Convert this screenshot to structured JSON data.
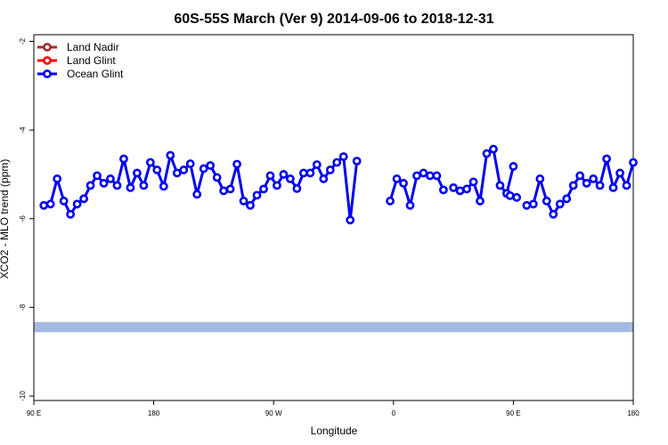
{
  "chart_data": {
    "type": "line",
    "title": "60S-55S March (Ver 9)   2014-09-06 to 2018-12-31",
    "xlabel": "Longitude",
    "ylabel": "XCO2 - MLO trend (ppm)",
    "xlim": [
      -270,
      -90
    ],
    "ylim": [
      -10.1,
      -1.85
    ],
    "x_ticks": [
      {
        "value": -270,
        "label": "90 E"
      },
      {
        "value": -234,
        "label": "180"
      },
      {
        "value": -198,
        "label": "90 W"
      },
      {
        "value": -162,
        "label": "0"
      },
      {
        "value": -126,
        "label": "90 E"
      },
      {
        "value": -90,
        "label": "180"
      }
    ],
    "y_ticks": [
      {
        "value": -2,
        "label": "-2"
      },
      {
        "value": -4,
        "label": "-4"
      },
      {
        "value": -6,
        "label": "-6"
      },
      {
        "value": -8,
        "label": "-8"
      },
      {
        "value": -10,
        "label": "-10"
      }
    ],
    "legend": {
      "position": "top-left",
      "entries": [
        {
          "name": "Land Nadir",
          "color": "#a52a2a"
        },
        {
          "name": "Land Glint",
          "color": "#ff0000"
        },
        {
          "name": "Ocean Glint",
          "color": "#0000ee"
        }
      ]
    },
    "series": [
      {
        "name": "Land Nadir",
        "color": "#a52a2a",
        "segments": []
      },
      {
        "name": "Land Glint",
        "color": "#ff0000",
        "segments": []
      },
      {
        "name": "Ocean Glint",
        "color": "#0000ee",
        "segments": [
          {
            "x": [
              -267,
              -265,
              -263,
              -261,
              -259,
              -257,
              -255,
              -253,
              -251,
              -249,
              -247,
              -245,
              -243,
              -241,
              -239,
              -237,
              -235,
              -233,
              -231,
              -229,
              -227,
              -225,
              -223,
              -221,
              -219,
              -217,
              -215,
              -213,
              -211,
              -209,
              -207,
              -205,
              -203,
              -201,
              -199,
              -197,
              -195,
              -193,
              -191,
              -189,
              -187,
              -185,
              -183,
              -181,
              -179,
              -177,
              -175,
              -173
            ],
            "y": [
              -5.7,
              -5.67,
              -5.1,
              -5.6,
              -5.9,
              -5.67,
              -5.55,
              -5.25,
              -5.03,
              -5.2,
              -5.1,
              -5.25,
              -4.65,
              -5.3,
              -4.97,
              -5.25,
              -4.73,
              -4.9,
              -5.27,
              -4.57,
              -4.97,
              -4.9,
              -4.76,
              -5.45,
              -4.87,
              -4.8,
              -5.07,
              -5.37,
              -5.33,
              -4.77,
              -5.6,
              -5.7,
              -5.47,
              -5.33,
              -5.03,
              -5.25,
              -5.0,
              -5.1,
              -5.32,
              -4.97,
              -4.97,
              -4.78,
              -5.1,
              -4.9,
              -4.73,
              -4.6,
              -6.03,
              -4.7
            ]
          },
          {
            "x": [
              -163,
              -161,
              -159,
              -157,
              -155,
              -153,
              -151,
              -149,
              -147
            ],
            "y": [
              -5.6,
              -5.1,
              -5.2,
              -5.7,
              -5.03,
              -4.97,
              -5.03,
              -5.03,
              -5.35
            ]
          },
          {
            "x": [
              -144,
              -142,
              -140,
              -138,
              -136,
              -134,
              -132,
              -130,
              -128,
              -126
            ],
            "y": [
              -5.3,
              -5.37,
              -5.33,
              -5.17,
              -5.6,
              -4.53,
              -4.43,
              -5.25,
              -5.43,
              -4.82
            ]
          },
          {
            "x": [
              -127,
              -125
            ],
            "y": [
              -5.48,
              -5.52
            ]
          },
          {
            "x": [
              -122,
              -120,
              -118,
              -116,
              -114,
              -112,
              -110,
              -108,
              -106,
              -104,
              -102,
              -100,
              -98,
              -96,
              -94,
              -92,
              -90
            ],
            "y": [
              -5.7,
              -5.67,
              -5.1,
              -5.6,
              -5.9,
              -5.67,
              -5.55,
              -5.25,
              -5.03,
              -5.2,
              -5.1,
              -5.25,
              -4.65,
              -5.3,
              -4.97,
              -5.25,
              -4.73
            ]
          }
        ]
      }
    ],
    "band": {
      "y_from": -8.56,
      "y_to": -8.33,
      "color": "#a3bbe0"
    }
  }
}
